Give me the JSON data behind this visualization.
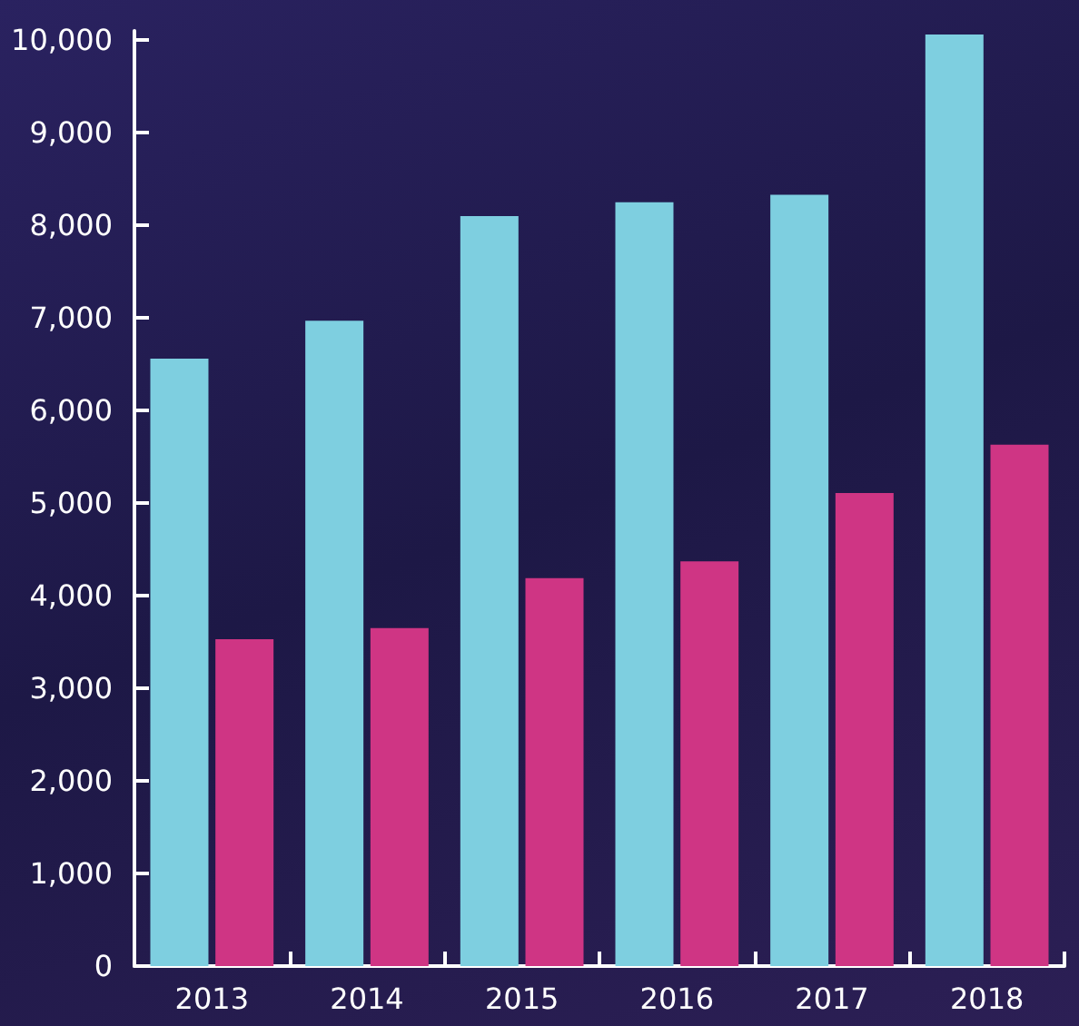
{
  "chart_data": {
    "type": "bar",
    "categories": [
      "2013",
      "2014",
      "2015",
      "2016",
      "2017",
      "2018"
    ],
    "series": [
      {
        "color": "#7ecfe0",
        "values": [
          6560,
          6970,
          8100,
          8250,
          8330,
          10060
        ]
      },
      {
        "color": "#cf3584",
        "values": [
          3530,
          3650,
          4190,
          4370,
          5110,
          5630
        ]
      }
    ],
    "ylim": [
      0,
      10100
    ],
    "yticks": [
      0,
      {
        "value": 1000,
        "label": "1,000"
      },
      {
        "value": 2000,
        "label": "2,000"
      },
      {
        "value": 3000,
        "label": "3,000"
      },
      {
        "value": 4000,
        "label": "4,000"
      },
      {
        "value": 5000,
        "label": "5,000"
      },
      {
        "value": 6000,
        "label": "6,000"
      },
      {
        "value": 7000,
        "label": "7,000"
      },
      {
        "value": 8000,
        "label": "8,000"
      },
      {
        "value": 9000,
        "label": "9,000"
      },
      {
        "value": 10000,
        "label": "10,000"
      }
    ],
    "grid": false
  }
}
